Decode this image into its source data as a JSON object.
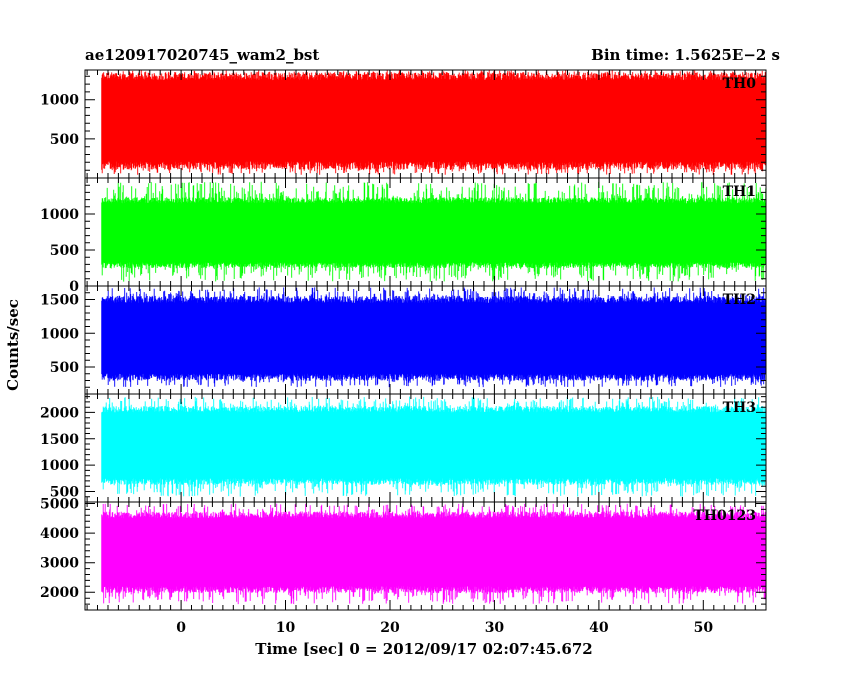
{
  "title_left": "ae120917020745_wam2_bst",
  "title_right": "Bin time: 1.5625E−2 s",
  "chart_data": {
    "type": "line",
    "xlabel": "Time [sec] 0 = 2012/09/17 02:07:45.672",
    "ylabel": "Counts/sec",
    "xlim": [
      -9.2,
      56
    ],
    "x_ticks": [
      0,
      10,
      20,
      30,
      40,
      50
    ],
    "data_x_range": [
      -7.6,
      56
    ],
    "panels": [
      {
        "name": "TH0",
        "color": "#ff0000",
        "ylim": [
          0,
          1380
        ],
        "y_ticks": [
          500,
          1000
        ],
        "band": [
          210,
          1250
        ],
        "envelope": [
          40,
          1380
        ]
      },
      {
        "name": "TH1",
        "color": "#00ff00",
        "ylim": [
          0,
          1500
        ],
        "y_ticks": [
          0,
          500,
          1000
        ],
        "band": [
          330,
          1150
        ],
        "envelope": [
          60,
          1450
        ]
      },
      {
        "name": "TH2",
        "color": "#0000ff",
        "ylim": [
          100,
          1700
        ],
        "y_ticks": [
          500,
          1000,
          1500
        ],
        "band": [
          400,
          1450
        ],
        "envelope": [
          200,
          1680
        ]
      },
      {
        "name": "TH3",
        "color": "#00ffff",
        "ylim": [
          300,
          2350
        ],
        "y_ticks": [
          500,
          1000,
          1500,
          2000
        ],
        "band": [
          750,
          2000
        ],
        "envelope": [
          400,
          2300
        ]
      },
      {
        "name": "TH0123",
        "color": "#ff00ff",
        "ylim": [
          1400,
          5050
        ],
        "y_ticks": [
          2000,
          3000,
          4000,
          5000
        ],
        "band": [
          2200,
          4500
        ],
        "envelope": [
          1600,
          5000
        ]
      }
    ]
  }
}
